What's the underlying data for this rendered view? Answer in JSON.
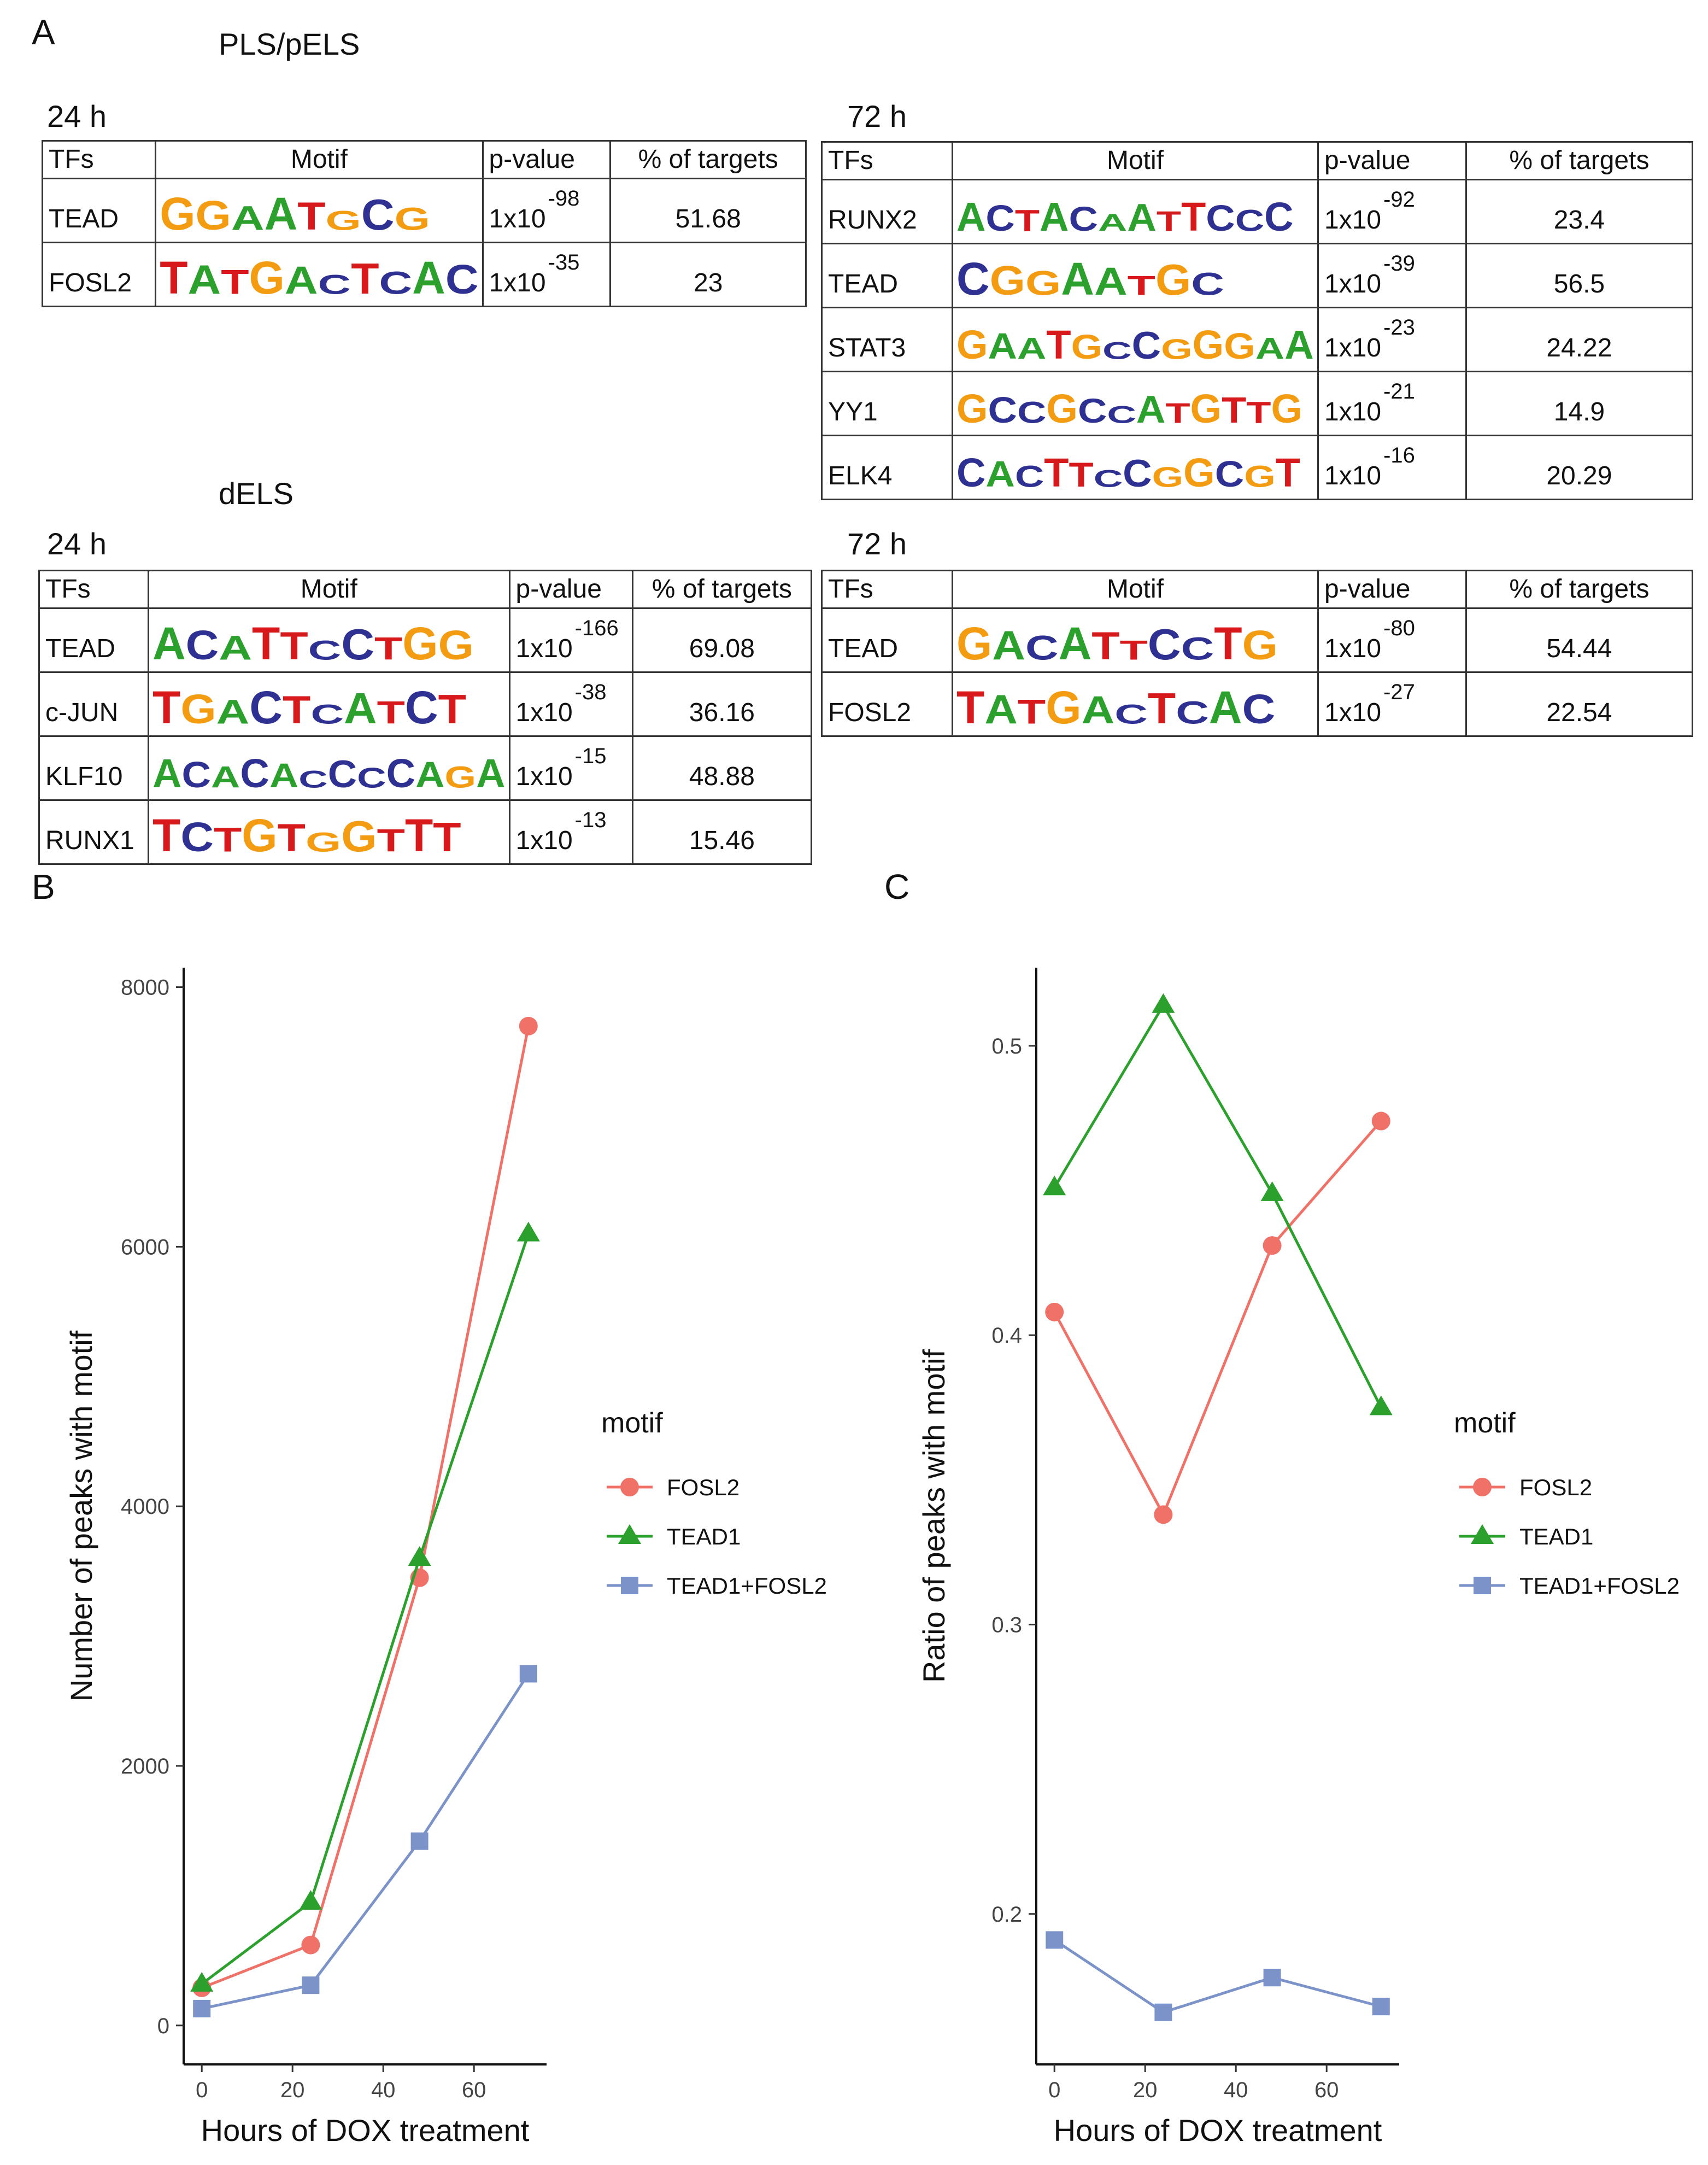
{
  "panel_a": {
    "letter": "A",
    "sections": [
      {
        "title": "PLS/pELS",
        "tables": [
          {
            "time": "24 h",
            "header": [
              "TFs",
              "Motif",
              "p-value",
              "% of targets"
            ],
            "rows": [
              {
                "tf": "TEAD",
                "motif": "GGAATGCG",
                "p_base": "1x10",
                "p_exp": "-98",
                "pct": "51.68"
              },
              {
                "tf": "FOSL2",
                "motif": "TATGACTCAC",
                "p_base": "1x10",
                "p_exp": "-35",
                "pct": "23"
              }
            ]
          },
          {
            "time": "72 h",
            "header": [
              "TFs",
              "Motif",
              "p-value",
              "% of targets"
            ],
            "rows": [
              {
                "tf": "RUNX2",
                "motif": "ACTACAATTCCC",
                "p_base": "1x10",
                "p_exp": "-92",
                "pct": "23.4"
              },
              {
                "tf": "TEAD",
                "motif": "CGGAATGC",
                "p_base": "1x10",
                "p_exp": "-39",
                "pct": "56.5"
              },
              {
                "tf": "STAT3",
                "motif": "GAATGCCGGGAA",
                "p_base": "1x10",
                "p_exp": "-23",
                "pct": "24.22"
              },
              {
                "tf": "YY1",
                "motif": "GCCGCCATGTTG",
                "p_base": "1x10",
                "p_exp": "-21",
                "pct": "14.9"
              },
              {
                "tf": "ELK4",
                "motif": "CACTTCCGGCGT",
                "p_base": "1x10",
                "p_exp": "-16",
                "pct": "20.29"
              }
            ]
          }
        ]
      },
      {
        "title": "dELS",
        "tables": [
          {
            "time": "24 h",
            "header": [
              "TFs",
              "Motif",
              "p-value",
              "% of targets"
            ],
            "rows": [
              {
                "tf": "TEAD",
                "motif": "ACATTCCTGG",
                "p_base": "1x10",
                "p_exp": "-166",
                "pct": "69.08"
              },
              {
                "tf": "c-JUN",
                "motif": "TGACTCATCT",
                "p_base": "1x10",
                "p_exp": "-38",
                "pct": "36.16"
              },
              {
                "tf": "KLF10",
                "motif": "ACACACCCCAGA",
                "p_base": "1x10",
                "p_exp": "-15",
                "pct": "48.88"
              },
              {
                "tf": "RUNX1",
                "motif": "TCTGTGGTTT",
                "p_base": "1x10",
                "p_exp": "-13",
                "pct": "15.46"
              }
            ]
          },
          {
            "time": "72 h",
            "header": [
              "TFs",
              "Motif",
              "p-value",
              "% of targets"
            ],
            "rows": [
              {
                "tf": "TEAD",
                "motif": "GACATTCCTG",
                "p_base": "1x10",
                "p_exp": "-80",
                "pct": "54.44"
              },
              {
                "tf": "FOSL2",
                "motif": "TATGACTCAC",
                "p_base": "1x10",
                "p_exp": "-27",
                "pct": "22.54"
              }
            ]
          }
        ]
      }
    ]
  },
  "panel_b": {
    "letter": "B"
  },
  "panel_c": {
    "letter": "C"
  },
  "colors": {
    "FOSL2": "#F07167",
    "TEAD1": "#2CA02C",
    "TEAD1+FOSL2": "#7B93C9",
    "A": "#2ca02c",
    "C": "#2e3192",
    "G": "#f39c12",
    "T": "#d7191c"
  },
  "chart_data": [
    {
      "type": "line",
      "panel": "B",
      "xlabel": "Hours of DOX treatment",
      "ylabel": "Number of peaks with motif",
      "x": [
        0,
        24,
        48,
        72
      ],
      "xticks": [
        0,
        20,
        40,
        60
      ],
      "yticks": [
        0,
        2000,
        4000,
        6000,
        8000
      ],
      "xlim": [
        -4,
        76
      ],
      "ylim": [
        -300,
        8150
      ],
      "grid": false,
      "legend": {
        "title": "motif",
        "position": "right"
      },
      "series": [
        {
          "name": "FOSL2",
          "marker": "circle",
          "values": [
            290,
            620,
            3450,
            7700
          ]
        },
        {
          "name": "TEAD1",
          "marker": "triangle",
          "values": [
            320,
            950,
            3600,
            6100
          ]
        },
        {
          "name": "TEAD1+FOSL2",
          "marker": "square",
          "values": [
            130,
            310,
            1420,
            2710
          ]
        }
      ]
    },
    {
      "type": "line",
      "panel": "C",
      "xlabel": "Hours of DOX treatment",
      "ylabel": "Ratio of peaks with motif",
      "x": [
        0,
        24,
        48,
        72
      ],
      "xticks": [
        0,
        20,
        40,
        60
      ],
      "yticks": [
        0.2,
        0.3,
        0.4,
        0.5
      ],
      "xlim": [
        -4,
        76
      ],
      "ylim": [
        0.148,
        0.527
      ],
      "grid": false,
      "legend": {
        "title": "motif",
        "position": "right"
      },
      "series": [
        {
          "name": "FOSL2",
          "marker": "circle",
          "values": [
            0.408,
            0.338,
            0.431,
            0.474
          ]
        },
        {
          "name": "TEAD1",
          "marker": "triangle",
          "values": [
            0.451,
            0.514,
            0.449,
            0.375
          ]
        },
        {
          "name": "TEAD1+FOSL2",
          "marker": "square",
          "values": [
            0.191,
            0.166,
            0.178,
            0.168
          ]
        }
      ]
    }
  ]
}
